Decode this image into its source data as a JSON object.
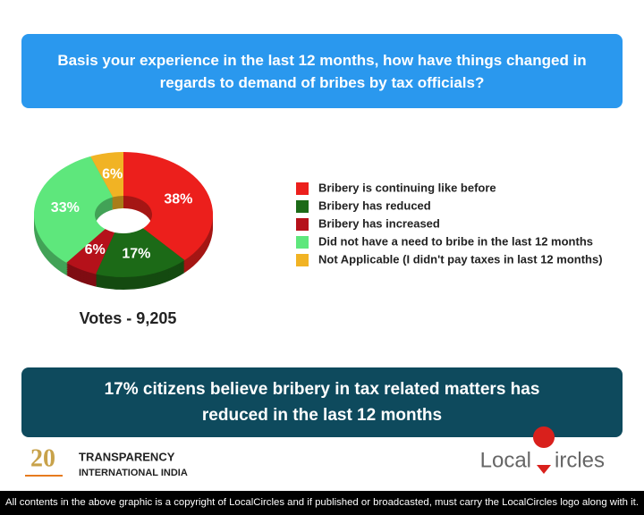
{
  "chart_data": {
    "type": "donut",
    "title": "Basis your experience in the last 12 months, how have things changed in regards to demand of bribes by tax officials?",
    "series": [
      {
        "name": "Bribery is continuing like before",
        "color": "#ec1f1c",
        "values": [
          38
        ],
        "value_labels": [
          "38%"
        ]
      },
      {
        "name": "Bribery has reduced",
        "color": "#1c6a17",
        "values": [
          17
        ],
        "value_labels": [
          "17%"
        ]
      },
      {
        "name": "Bribery has increased",
        "color": "#b5111a",
        "values": [
          6
        ],
        "value_labels": [
          "6%"
        ]
      },
      {
        "name": "Did not have a need to bribe in the last 12 months",
        "color": "#5ee77c",
        "values": [
          33
        ],
        "value_labels": [
          "33%"
        ]
      },
      {
        "name": "Not Applicable (I didn't pay taxes in last 12 months)",
        "color": "#f1b324",
        "values": [
          6
        ],
        "value_labels": [
          "6%"
        ]
      }
    ],
    "votes": "Votes - 9,205"
  },
  "summary": "17% citizens believe bribery in tax related matters has reduced in the last 12 months",
  "logos": {
    "transparency_line1": "TRANSPARENCY",
    "transparency_line2": "INTERNATIONAL INDIA",
    "anniversary": "20",
    "local": "Local",
    "circles": "ircles"
  },
  "footer": "All contents in the above graphic is a copyright of LocalCircles and if published or broadcasted, must carry the LocalCircles logo along with it."
}
